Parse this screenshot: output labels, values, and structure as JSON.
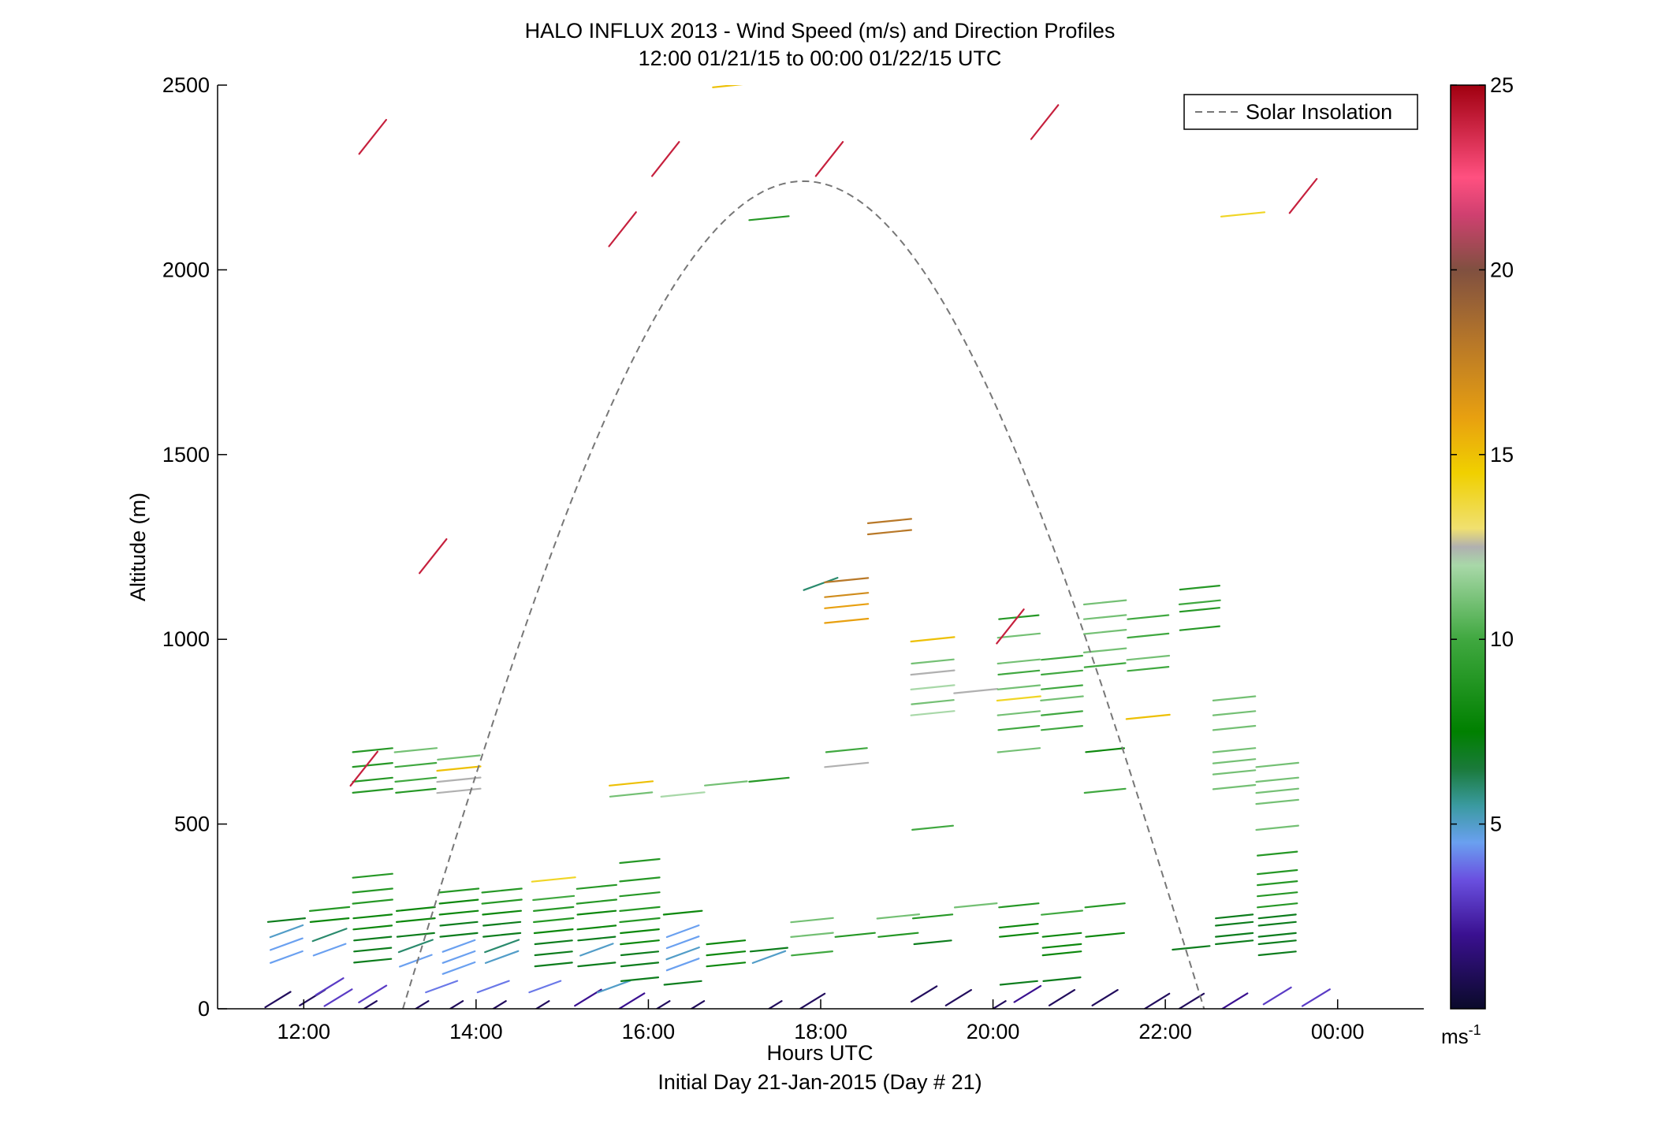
{
  "chart_data": {
    "type": "scatter",
    "title": "HALO INFLUX 2013 - Wind Speed (m/s) and Direction Profiles",
    "subtitle": "12:00 01/21/15 to 00:00 01/22/15  UTC",
    "xlabel": "Hours UTC",
    "xlabel2": "Initial Day 21-Jan-2015 (Day # 21)",
    "ylabel": "Altitude (m)",
    "xlim": [
      11.0,
      25.0
    ],
    "ylim": [
      0,
      2500
    ],
    "x_ticks": [
      {
        "value": 12,
        "label": "12:00"
      },
      {
        "value": 14,
        "label": "14:00"
      },
      {
        "value": 16,
        "label": "16:00"
      },
      {
        "value": 18,
        "label": "18:00"
      },
      {
        "value": 20,
        "label": "20:00"
      },
      {
        "value": 22,
        "label": "22:00"
      },
      {
        "value": 24,
        "label": "00:00"
      }
    ],
    "y_ticks": [
      {
        "value": 0,
        "label": "0"
      },
      {
        "value": 500,
        "label": "500"
      },
      {
        "value": 1000,
        "label": "1000"
      },
      {
        "value": 1500,
        "label": "1500"
      },
      {
        "value": 2000,
        "label": "2000"
      },
      {
        "value": 2500,
        "label": "2500"
      }
    ],
    "legend": {
      "position": "top-right",
      "entries": [
        {
          "label": "Solar Insolation",
          "style": "dashed",
          "color": "#777777"
        }
      ]
    },
    "colorbar": {
      "range": [
        0,
        25
      ],
      "ticks": [
        {
          "value": 5,
          "label": "5"
        },
        {
          "value": 10,
          "label": "10"
        },
        {
          "value": 15,
          "label": "15"
        },
        {
          "value": 20,
          "label": "20"
        },
        {
          "value": 25,
          "label": "25"
        }
      ],
      "units_base": "ms",
      "units_exp": "-1",
      "stops": [
        {
          "v": 0,
          "c": "#0a0a2a"
        },
        {
          "v": 2,
          "c": "#3a1090"
        },
        {
          "v": 3.5,
          "c": "#6a50e0"
        },
        {
          "v": 4.5,
          "c": "#6aa0f0"
        },
        {
          "v": 5.5,
          "c": "#3a9aa0"
        },
        {
          "v": 6.5,
          "c": "#1a7a3a"
        },
        {
          "v": 7.5,
          "c": "#008000"
        },
        {
          "v": 10,
          "c": "#40a840"
        },
        {
          "v": 12,
          "c": "#a8d8a8"
        },
        {
          "v": 12.5,
          "c": "#b0b0b0"
        },
        {
          "v": 13,
          "c": "#f0e070"
        },
        {
          "v": 14.5,
          "c": "#f0d000"
        },
        {
          "v": 16,
          "c": "#e8a010"
        },
        {
          "v": 18,
          "c": "#b87828"
        },
        {
          "v": 20,
          "c": "#805040"
        },
        {
          "v": 21.5,
          "c": "#d04070"
        },
        {
          "v": 22.5,
          "c": "#ff5080"
        },
        {
          "v": 25,
          "c": "#a00010"
        }
      ]
    },
    "solar_insolation": {
      "start": 13.15,
      "end": 22.45,
      "peak_altitude": 2240
    },
    "wind_barbs": [
      {
        "t": 11.7,
        "alt": 25,
        "spd": 1
      },
      {
        "t": 12.1,
        "alt": 30,
        "spd": 1
      },
      {
        "t": 12.4,
        "alt": 30,
        "spd": 3
      },
      {
        "t": 12.7,
        "alt": 0,
        "spd": 1
      },
      {
        "t": 13.3,
        "alt": 0,
        "spd": 1
      },
      {
        "t": 13.7,
        "alt": 0,
        "spd": 1
      },
      {
        "t": 14.2,
        "alt": 0,
        "spd": 1
      },
      {
        "t": 14.7,
        "alt": 0,
        "spd": 1
      },
      {
        "t": 15.3,
        "alt": 30,
        "spd": 2
      },
      {
        "t": 15.8,
        "alt": 20,
        "spd": 2
      },
      {
        "t": 16.1,
        "alt": 0,
        "spd": 1
      },
      {
        "t": 16.5,
        "alt": 0,
        "spd": 1
      },
      {
        "t": 17.4,
        "alt": 0,
        "spd": 1
      },
      {
        "t": 17.9,
        "alt": 20,
        "spd": 1
      },
      {
        "t": 19.2,
        "alt": 40,
        "spd": 1
      },
      {
        "t": 19.6,
        "alt": 30,
        "spd": 1
      },
      {
        "t": 20.0,
        "alt": 0,
        "spd": 1
      },
      {
        "t": 20.4,
        "alt": 40,
        "spd": 2
      },
      {
        "t": 20.8,
        "alt": 30,
        "spd": 1
      },
      {
        "t": 21.3,
        "alt": 30,
        "spd": 1
      },
      {
        "t": 21.9,
        "alt": 20,
        "spd": 1
      },
      {
        "t": 22.3,
        "alt": 20,
        "spd": 1
      },
      {
        "t": 22.8,
        "alt": 20,
        "spd": 2
      },
      {
        "t": 23.3,
        "alt": 35,
        "spd": 3
      },
      {
        "t": 23.75,
        "alt": 30,
        "spd": 3
      },
      {
        "t": 12.3,
        "alt": 60,
        "spd": 3
      },
      {
        "t": 12.8,
        "alt": 40,
        "spd": 3
      },
      {
        "t": 13.6,
        "alt": 60,
        "spd": 4
      },
      {
        "t": 14.2,
        "alt": 60,
        "spd": 4
      },
      {
        "t": 14.8,
        "alt": 60,
        "spd": 4
      },
      {
        "t": 15.6,
        "alt": 60,
        "spd": 5
      },
      {
        "t": 11.8,
        "alt": 140,
        "spd": 4.5
      },
      {
        "t": 11.8,
        "alt": 175,
        "spd": 4.5
      },
      {
        "t": 11.8,
        "alt": 210,
        "spd": 5
      },
      {
        "t": 11.8,
        "alt": 240,
        "spd": 7
      },
      {
        "t": 12.3,
        "alt": 160,
        "spd": 4.5
      },
      {
        "t": 12.3,
        "alt": 200,
        "spd": 6
      },
      {
        "t": 12.3,
        "alt": 240,
        "spd": 8
      },
      {
        "t": 12.3,
        "alt": 270,
        "spd": 9
      },
      {
        "t": 12.8,
        "alt": 130,
        "spd": 7
      },
      {
        "t": 12.8,
        "alt": 160,
        "spd": 7
      },
      {
        "t": 12.8,
        "alt": 190,
        "spd": 7
      },
      {
        "t": 12.8,
        "alt": 220,
        "spd": 8
      },
      {
        "t": 12.8,
        "alt": 250,
        "spd": 8
      },
      {
        "t": 12.8,
        "alt": 290,
        "spd": 9
      },
      {
        "t": 12.8,
        "alt": 320,
        "spd": 9
      },
      {
        "t": 12.8,
        "alt": 360,
        "spd": 9
      },
      {
        "t": 13.3,
        "alt": 130,
        "spd": 4.5
      },
      {
        "t": 13.3,
        "alt": 170,
        "spd": 6
      },
      {
        "t": 13.3,
        "alt": 200,
        "spd": 7
      },
      {
        "t": 13.3,
        "alt": 240,
        "spd": 8
      },
      {
        "t": 13.3,
        "alt": 270,
        "spd": 8
      },
      {
        "t": 13.8,
        "alt": 110,
        "spd": 4.5
      },
      {
        "t": 13.8,
        "alt": 140,
        "spd": 4.5
      },
      {
        "t": 13.8,
        "alt": 170,
        "spd": 4.5
      },
      {
        "t": 13.8,
        "alt": 200,
        "spd": 7
      },
      {
        "t": 13.8,
        "alt": 230,
        "spd": 7
      },
      {
        "t": 13.8,
        "alt": 260,
        "spd": 8
      },
      {
        "t": 13.8,
        "alt": 290,
        "spd": 8
      },
      {
        "t": 13.8,
        "alt": 320,
        "spd": 9
      },
      {
        "t": 14.3,
        "alt": 140,
        "spd": 5
      },
      {
        "t": 14.3,
        "alt": 170,
        "spd": 6
      },
      {
        "t": 14.3,
        "alt": 200,
        "spd": 7
      },
      {
        "t": 14.3,
        "alt": 230,
        "spd": 7
      },
      {
        "t": 14.3,
        "alt": 260,
        "spd": 8
      },
      {
        "t": 14.3,
        "alt": 290,
        "spd": 9
      },
      {
        "t": 14.3,
        "alt": 320,
        "spd": 9
      },
      {
        "t": 14.9,
        "alt": 120,
        "spd": 7
      },
      {
        "t": 14.9,
        "alt": 150,
        "spd": 7
      },
      {
        "t": 14.9,
        "alt": 180,
        "spd": 7
      },
      {
        "t": 14.9,
        "alt": 210,
        "spd": 8
      },
      {
        "t": 14.9,
        "alt": 240,
        "spd": 9
      },
      {
        "t": 14.9,
        "alt": 270,
        "spd": 9
      },
      {
        "t": 14.9,
        "alt": 300,
        "spd": 10
      },
      {
        "t": 14.9,
        "alt": 350,
        "spd": 14
      },
      {
        "t": 15.4,
        "alt": 120,
        "spd": 7
      },
      {
        "t": 15.4,
        "alt": 160,
        "spd": 5
      },
      {
        "t": 15.4,
        "alt": 190,
        "spd": 7
      },
      {
        "t": 15.4,
        "alt": 220,
        "spd": 8
      },
      {
        "t": 15.4,
        "alt": 260,
        "spd": 8
      },
      {
        "t": 15.4,
        "alt": 290,
        "spd": 9
      },
      {
        "t": 15.4,
        "alt": 330,
        "spd": 9
      },
      {
        "t": 15.9,
        "alt": 80,
        "spd": 7
      },
      {
        "t": 15.9,
        "alt": 120,
        "spd": 7
      },
      {
        "t": 15.9,
        "alt": 150,
        "spd": 7
      },
      {
        "t": 15.9,
        "alt": 180,
        "spd": 8
      },
      {
        "t": 15.9,
        "alt": 210,
        "spd": 8
      },
      {
        "t": 15.9,
        "alt": 240,
        "spd": 9
      },
      {
        "t": 15.9,
        "alt": 270,
        "spd": 9
      },
      {
        "t": 15.9,
        "alt": 310,
        "spd": 9
      },
      {
        "t": 15.9,
        "alt": 350,
        "spd": 9
      },
      {
        "t": 15.9,
        "alt": 400,
        "spd": 9
      },
      {
        "t": 16.4,
        "alt": 120,
        "spd": 4.5
      },
      {
        "t": 16.4,
        "alt": 150,
        "spd": 5
      },
      {
        "t": 16.4,
        "alt": 180,
        "spd": 4.5
      },
      {
        "t": 16.4,
        "alt": 210,
        "spd": 4.5
      },
      {
        "t": 16.4,
        "alt": 260,
        "spd": 8
      },
      {
        "t": 16.4,
        "alt": 70,
        "spd": 7
      },
      {
        "t": 16.9,
        "alt": 120,
        "spd": 8
      },
      {
        "t": 16.9,
        "alt": 150,
        "spd": 8
      },
      {
        "t": 16.9,
        "alt": 180,
        "spd": 8
      },
      {
        "t": 17.4,
        "alt": 140,
        "spd": 5
      },
      {
        "t": 17.4,
        "alt": 160,
        "spd": 7
      },
      {
        "t": 17.9,
        "alt": 150,
        "spd": 10
      },
      {
        "t": 17.9,
        "alt": 200,
        "spd": 11
      },
      {
        "t": 17.9,
        "alt": 240,
        "spd": 11
      },
      {
        "t": 18.4,
        "alt": 200,
        "spd": 9
      },
      {
        "t": 18.9,
        "alt": 200,
        "spd": 9
      },
      {
        "t": 18.9,
        "alt": 250,
        "spd": 11
      },
      {
        "t": 19.3,
        "alt": 180,
        "spd": 7
      },
      {
        "t": 19.3,
        "alt": 250,
        "spd": 9
      },
      {
        "t": 19.8,
        "alt": 280,
        "spd": 11
      },
      {
        "t": 20.3,
        "alt": 200,
        "spd": 8
      },
      {
        "t": 20.3,
        "alt": 225,
        "spd": 8
      },
      {
        "t": 20.3,
        "alt": 280,
        "spd": 9
      },
      {
        "t": 20.3,
        "alt": 70,
        "spd": 7
      },
      {
        "t": 20.8,
        "alt": 150,
        "spd": 8
      },
      {
        "t": 20.8,
        "alt": 170,
        "spd": 8
      },
      {
        "t": 20.8,
        "alt": 200,
        "spd": 8
      },
      {
        "t": 20.8,
        "alt": 260,
        "spd": 10
      },
      {
        "t": 20.8,
        "alt": 80,
        "spd": 7
      },
      {
        "t": 21.3,
        "alt": 200,
        "spd": 8
      },
      {
        "t": 21.3,
        "alt": 280,
        "spd": 9
      },
      {
        "t": 22.3,
        "alt": 165,
        "spd": 7
      },
      {
        "t": 22.8,
        "alt": 180,
        "spd": 7
      },
      {
        "t": 22.8,
        "alt": 200,
        "spd": 7
      },
      {
        "t": 22.8,
        "alt": 230,
        "spd": 7
      },
      {
        "t": 22.8,
        "alt": 250,
        "spd": 7
      },
      {
        "t": 23.3,
        "alt": 150,
        "spd": 7
      },
      {
        "t": 23.3,
        "alt": 180,
        "spd": 7
      },
      {
        "t": 23.3,
        "alt": 200,
        "spd": 7
      },
      {
        "t": 23.3,
        "alt": 230,
        "spd": 7
      },
      {
        "t": 23.3,
        "alt": 250,
        "spd": 7
      },
      {
        "t": 23.3,
        "alt": 280,
        "spd": 9
      },
      {
        "t": 23.3,
        "alt": 310,
        "spd": 9
      },
      {
        "t": 23.3,
        "alt": 340,
        "spd": 9
      },
      {
        "t": 23.3,
        "alt": 370,
        "spd": 9
      },
      {
        "t": 23.3,
        "alt": 420,
        "spd": 9
      },
      {
        "t": 23.3,
        "alt": 490,
        "spd": 11
      },
      {
        "t": 23.3,
        "alt": 560,
        "spd": 11
      },
      {
        "t": 23.3,
        "alt": 590,
        "spd": 11
      },
      {
        "t": 23.3,
        "alt": 620,
        "spd": 11
      },
      {
        "t": 23.3,
        "alt": 660,
        "spd": 11
      },
      {
        "t": 12.8,
        "alt": 590,
        "spd": 9
      },
      {
        "t": 12.8,
        "alt": 620,
        "spd": 9
      },
      {
        "t": 12.8,
        "alt": 660,
        "spd": 9
      },
      {
        "t": 12.8,
        "alt": 700,
        "spd": 9
      },
      {
        "t": 12.7,
        "alt": 650,
        "spd": 24
      },
      {
        "t": 13.3,
        "alt": 590,
        "spd": 9
      },
      {
        "t": 13.3,
        "alt": 620,
        "spd": 10
      },
      {
        "t": 13.3,
        "alt": 660,
        "spd": 10
      },
      {
        "t": 13.3,
        "alt": 700,
        "spd": 11
      },
      {
        "t": 13.8,
        "alt": 590,
        "spd": 12.5
      },
      {
        "t": 13.8,
        "alt": 620,
        "spd": 12.5
      },
      {
        "t": 13.8,
        "alt": 650,
        "spd": 15
      },
      {
        "t": 13.8,
        "alt": 680,
        "spd": 11
      },
      {
        "t": 15.8,
        "alt": 610,
        "spd": 15
      },
      {
        "t": 15.8,
        "alt": 580,
        "spd": 11
      },
      {
        "t": 16.4,
        "alt": 580,
        "spd": 12
      },
      {
        "t": 16.9,
        "alt": 610,
        "spd": 11
      },
      {
        "t": 17.4,
        "alt": 620,
        "spd": 9
      },
      {
        "t": 18.3,
        "alt": 660,
        "spd": 12.5
      },
      {
        "t": 18.3,
        "alt": 700,
        "spd": 10
      },
      {
        "t": 19.3,
        "alt": 490,
        "spd": 10
      },
      {
        "t": 19.3,
        "alt": 800,
        "spd": 12
      },
      {
        "t": 19.3,
        "alt": 830,
        "spd": 11
      },
      {
        "t": 19.3,
        "alt": 870,
        "spd": 12
      },
      {
        "t": 19.3,
        "alt": 910,
        "spd": 12.5
      },
      {
        "t": 19.3,
        "alt": 940,
        "spd": 11
      },
      {
        "t": 19.3,
        "alt": 1000,
        "spd": 15
      },
      {
        "t": 19.8,
        "alt": 860,
        "spd": 12.5
      },
      {
        "t": 20.3,
        "alt": 700,
        "spd": 11
      },
      {
        "t": 20.3,
        "alt": 760,
        "spd": 10
      },
      {
        "t": 20.3,
        "alt": 800,
        "spd": 11
      },
      {
        "t": 20.3,
        "alt": 840,
        "spd": 14
      },
      {
        "t": 20.3,
        "alt": 870,
        "spd": 11
      },
      {
        "t": 20.3,
        "alt": 910,
        "spd": 10
      },
      {
        "t": 20.3,
        "alt": 940,
        "spd": 11
      },
      {
        "t": 20.3,
        "alt": 1010,
        "spd": 11
      },
      {
        "t": 20.3,
        "alt": 1060,
        "spd": 9
      },
      {
        "t": 20.2,
        "alt": 1035,
        "spd": 24
      },
      {
        "t": 20.8,
        "alt": 760,
        "spd": 10
      },
      {
        "t": 20.8,
        "alt": 800,
        "spd": 10
      },
      {
        "t": 20.8,
        "alt": 840,
        "spd": 11
      },
      {
        "t": 20.8,
        "alt": 870,
        "spd": 10
      },
      {
        "t": 20.8,
        "alt": 910,
        "spd": 10
      },
      {
        "t": 20.8,
        "alt": 950,
        "spd": 10
      },
      {
        "t": 21.3,
        "alt": 590,
        "spd": 10
      },
      {
        "t": 21.3,
        "alt": 700,
        "spd": 8
      },
      {
        "t": 21.3,
        "alt": 930,
        "spd": 10
      },
      {
        "t": 21.3,
        "alt": 970,
        "spd": 11
      },
      {
        "t": 21.3,
        "alt": 1020,
        "spd": 11
      },
      {
        "t": 21.3,
        "alt": 1060,
        "spd": 11
      },
      {
        "t": 21.3,
        "alt": 1100,
        "spd": 11
      },
      {
        "t": 21.8,
        "alt": 790,
        "spd": 15
      },
      {
        "t": 21.8,
        "alt": 920,
        "spd": 10
      },
      {
        "t": 21.8,
        "alt": 950,
        "spd": 11
      },
      {
        "t": 21.8,
        "alt": 1010,
        "spd": 10
      },
      {
        "t": 21.8,
        "alt": 1060,
        "spd": 10
      },
      {
        "t": 22.4,
        "alt": 1030,
        "spd": 9
      },
      {
        "t": 22.4,
        "alt": 1080,
        "spd": 9
      },
      {
        "t": 22.4,
        "alt": 1100,
        "spd": 10
      },
      {
        "t": 22.4,
        "alt": 1140,
        "spd": 9
      },
      {
        "t": 22.8,
        "alt": 600,
        "spd": 11
      },
      {
        "t": 22.8,
        "alt": 640,
        "spd": 11
      },
      {
        "t": 22.8,
        "alt": 670,
        "spd": 11
      },
      {
        "t": 22.8,
        "alt": 700,
        "spd": 11
      },
      {
        "t": 22.8,
        "alt": 760,
        "spd": 11
      },
      {
        "t": 22.8,
        "alt": 800,
        "spd": 11
      },
      {
        "t": 22.8,
        "alt": 840,
        "spd": 11
      },
      {
        "t": 18.0,
        "alt": 1150,
        "spd": 6
      },
      {
        "t": 18.3,
        "alt": 1050,
        "spd": 16
      },
      {
        "t": 18.3,
        "alt": 1090,
        "spd": 16
      },
      {
        "t": 18.3,
        "alt": 1120,
        "spd": 17
      },
      {
        "t": 18.3,
        "alt": 1160,
        "spd": 18
      },
      {
        "t": 18.8,
        "alt": 1290,
        "spd": 18
      },
      {
        "t": 18.8,
        "alt": 1320,
        "spd": 18
      },
      {
        "t": 13.5,
        "alt": 1225,
        "spd": 24
      },
      {
        "t": 12.8,
        "alt": 2360,
        "spd": 24
      },
      {
        "t": 15.7,
        "alt": 2110,
        "spd": 24
      },
      {
        "t": 16.2,
        "alt": 2300,
        "spd": 24
      },
      {
        "t": 17.0,
        "alt": 2500,
        "spd": 15
      },
      {
        "t": 17.4,
        "alt": 2140,
        "spd": 9
      },
      {
        "t": 18.1,
        "alt": 2300,
        "spd": 24
      },
      {
        "t": 20.6,
        "alt": 2400,
        "spd": 24
      },
      {
        "t": 22.9,
        "alt": 2150,
        "spd": 14
      },
      {
        "t": 23.6,
        "alt": 2200,
        "spd": 24
      }
    ]
  }
}
